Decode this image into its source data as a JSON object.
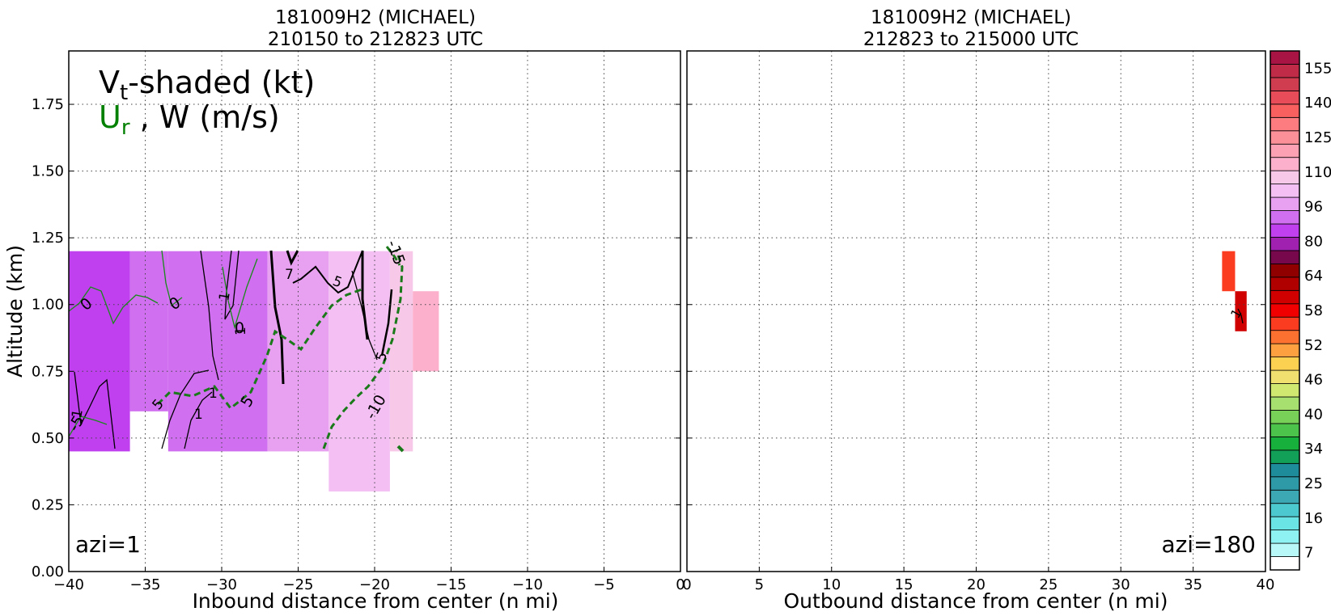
{
  "chart_data": [
    {
      "type": "heatmap",
      "title_line1": "181009H2 (MICHAEL)",
      "title_line2": "210150 to 212823 UTC",
      "xlabel": "Inbound distance from center (n mi)",
      "ylabel": "Altitude (km)",
      "xlim": [
        -40,
        0
      ],
      "ylim": [
        0,
        1.95
      ],
      "xticks": [
        -40,
        -35,
        -30,
        -25,
        -20,
        -15,
        -10,
        -5,
        0
      ],
      "yticks": [
        0.0,
        0.25,
        0.5,
        0.75,
        1.0,
        1.25,
        1.5,
        1.75
      ],
      "ytick_labels": [
        "0.00",
        "0.25",
        "0.50",
        "0.75",
        "1.00",
        "1.25",
        "1.50",
        "1.75"
      ],
      "grid": true,
      "legend_main": "V",
      "legend_sub": "t",
      "legend_rest": "-shaded (kt)",
      "legend2_u": "U",
      "legend2_sub": "r",
      "legend2_rest": " , W (m/s)",
      "legend2_color": "#008000",
      "annotation": "azi=1",
      "cells": [
        {
          "x0": -40,
          "x1": -36,
          "y0": 0.45,
          "y1": 1.2,
          "v": 84
        },
        {
          "x0": -36,
          "x1": -33.5,
          "y0": 0.6,
          "y1": 1.2,
          "v": 86
        },
        {
          "x0": -33.5,
          "x1": -30,
          "y0": 0.45,
          "y1": 1.2,
          "v": 88
        },
        {
          "x0": -30,
          "x1": -27,
          "y0": 0.45,
          "y1": 1.2,
          "v": 91
        },
        {
          "x0": -27,
          "x1": -23,
          "y0": 0.45,
          "y1": 1.2,
          "v": 96
        },
        {
          "x0": -23,
          "x1": -19,
          "y0": 0.3,
          "y1": 1.2,
          "v": 98
        },
        {
          "x0": -19,
          "x1": -17.5,
          "y0": 0.45,
          "y1": 1.2,
          "v": 104
        },
        {
          "x0": -17.5,
          "x1": -15.8,
          "y0": 0.75,
          "y1": 1.05,
          "v": 112
        }
      ],
      "contour_labels_black": [
        "1",
        "7",
        "5",
        "1",
        "1",
        "1",
        "5",
        "1",
        "5"
      ],
      "contour_labels_green": [
        "0",
        "0",
        "0",
        "-5",
        "5",
        "-10",
        "-15",
        "-5"
      ]
    },
    {
      "type": "heatmap",
      "title_line1": "181009H2 (MICHAEL)",
      "title_line2": "212823 to 215000 UTC",
      "xlabel": "Outbound distance from center (n mi)",
      "xlim": [
        0,
        40
      ],
      "ylim": [
        0,
        1.95
      ],
      "xticks": [
        0,
        5,
        10,
        15,
        20,
        25,
        30,
        35,
        40
      ],
      "grid": true,
      "annotation": "azi=180",
      "cells": [
        {
          "x0": 37,
          "x1": 37.9,
          "y0": 1.05,
          "y1": 1.2,
          "v": 55
        },
        {
          "x0": 37.9,
          "x1": 38.7,
          "y0": 0.9,
          "y1": 1.05,
          "v": 60
        }
      ],
      "contour_labels_black": [
        "1"
      ]
    }
  ],
  "colorbar": {
    "tick_labels": [
      "7",
      "16",
      "25",
      "34",
      "40",
      "46",
      "52",
      "58",
      "64",
      "80",
      "96",
      "110",
      "125",
      "140",
      "155"
    ],
    "colors": [
      "#ffffff",
      "#b8f8f8",
      "#8ef2f2",
      "#6ae4e4",
      "#4cc8cf",
      "#3ca8b4",
      "#2e9aa8",
      "#1e8c9a",
      "#12a058",
      "#18b03c",
      "#4cc44c",
      "#78d058",
      "#a8e070",
      "#d0e870",
      "#f0e070",
      "#fcd050",
      "#fca040",
      "#fc7030",
      "#fc3c20",
      "#f00000",
      "#d00000",
      "#b00000",
      "#900000",
      "#78084c",
      "#a020b0",
      "#c040f0",
      "#d070f0",
      "#e8a0f0",
      "#f4c0f4",
      "#f8c8e8",
      "#fcb0cc",
      "#fca0b4",
      "#fc9098",
      "#fc7c80",
      "#f86060",
      "#e84c58",
      "#d03c50",
      "#c02c48",
      "#a81444"
    ]
  }
}
